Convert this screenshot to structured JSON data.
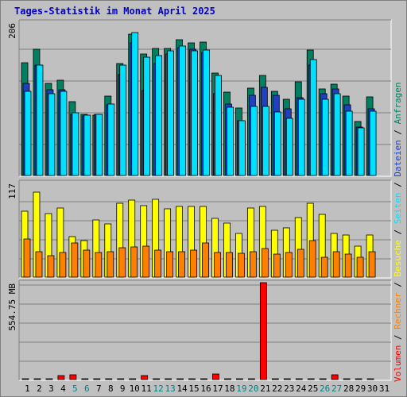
{
  "chart_data": {
    "type": "bar",
    "title": "Tages-Statistik im Monat April 2025",
    "background": "#c0c0c0",
    "days": [
      "1",
      "2",
      "3",
      "4",
      "5",
      "6",
      "7",
      "8",
      "9",
      "10",
      "11",
      "12",
      "13",
      "14",
      "15",
      "16",
      "17",
      "18",
      "19",
      "20",
      "21",
      "22",
      "23",
      "24",
      "25",
      "26",
      "27",
      "28",
      "29",
      "30",
      "31"
    ],
    "weekend_days": [
      "5",
      "6",
      "12",
      "13",
      "19",
      "20",
      "26",
      "27"
    ],
    "colors": {
      "title": "#0000cc",
      "day_normal": "#000000",
      "day_weekend": "#008080",
      "anfragen": "#008060",
      "dateien": "#2040c0",
      "seiten": "#00e0ff",
      "besuche": "#ffff00",
      "rechner": "#ff8000",
      "volumen": "#ff0000"
    },
    "panels": [
      {
        "name": "hits",
        "ylabel": "206",
        "ymax": 206,
        "series": [
          {
            "name": "Anfragen",
            "color": "#008060",
            "values": [
              152,
              170,
              124,
              128,
              99,
              82,
              81,
              107,
              150,
              190,
              163,
              171,
              171,
              182,
              178,
              179,
              138,
              112,
              91,
              117,
              134,
              113,
              102,
              126,
              169,
              116,
              123,
              107,
              73,
              106,
              null
            ]
          },
          {
            "name": "Dateien",
            "color": "#2040c0",
            "values": [
              124,
              148,
              115,
              115,
              82,
              80,
              82,
              95,
              136,
              178,
              114,
              150,
              163,
              172,
              170,
              165,
              110,
              96,
              74,
              108,
              118,
              108,
              90,
              105,
              148,
              110,
              116,
              95,
              65,
              90,
              null
            ]
          },
          {
            "name": "Seiten",
            "color": "#00e0ff",
            "values": [
              113,
              148,
              110,
              113,
              84,
              81,
              82,
              96,
              148,
              192,
              159,
              161,
              168,
              174,
              168,
              169,
              134,
              92,
              74,
              93,
              93,
              85,
              77,
              102,
              156,
              102,
              110,
              86,
              64,
              86,
              null
            ]
          }
        ]
      },
      {
        "name": "visits",
        "ylabel": "117",
        "ymax": 117,
        "series": [
          {
            "name": "Besuche",
            "color": "#ffff00",
            "values": [
              80,
              103,
              77,
              84,
              49,
              44,
              70,
              65,
              90,
              94,
              87,
              95,
              83,
              86,
              86,
              86,
              72,
              66,
              53,
              84,
              86,
              57,
              60,
              73,
              90,
              76,
              53,
              51,
              38,
              51,
              null
            ]
          },
          {
            "name": "Rechner",
            "color": "#ff8000",
            "values": [
              46,
              31,
              26,
              30,
              42,
              33,
              30,
              31,
              36,
              37,
              38,
              33,
              31,
              31,
              33,
              42,
              30,
              30,
              29,
              31,
              35,
              28,
              30,
              34,
              44,
              24,
              31,
              28,
              24,
              31,
              null
            ]
          }
        ]
      },
      {
        "name": "volume",
        "ylabel": "554.75 MB",
        "ymax": 554.75,
        "series": [
          {
            "name": "Volumen",
            "color": "#ff0000",
            "values": [
              4,
              1,
              1,
              25,
              28,
              1,
              1,
              1,
              1,
              1,
              25,
              1,
              1,
              1,
              1,
              1,
              30,
              1,
              1,
              1,
              555,
              1,
              1,
              1,
              1,
              1,
              27,
              1,
              1,
              1,
              null
            ]
          }
        ]
      }
    ],
    "legend_right": [
      {
        "label": "Volumen",
        "color": "#ff0000"
      },
      {
        "label": " / ",
        "color": "#000000"
      },
      {
        "label": "Rechner",
        "color": "#ff8000"
      },
      {
        "label": " / ",
        "color": "#000000"
      },
      {
        "label": "Besuche",
        "color": "#ffff00"
      },
      {
        "label": " / ",
        "color": "#000000"
      },
      {
        "label": "Seiten",
        "color": "#00e0ff"
      },
      {
        "label": " / ",
        "color": "#000000"
      },
      {
        "label": "Dateien",
        "color": "#2040c0"
      },
      {
        "label": " / ",
        "color": "#000000"
      },
      {
        "label": "Anfragen",
        "color": "#008060"
      }
    ]
  }
}
